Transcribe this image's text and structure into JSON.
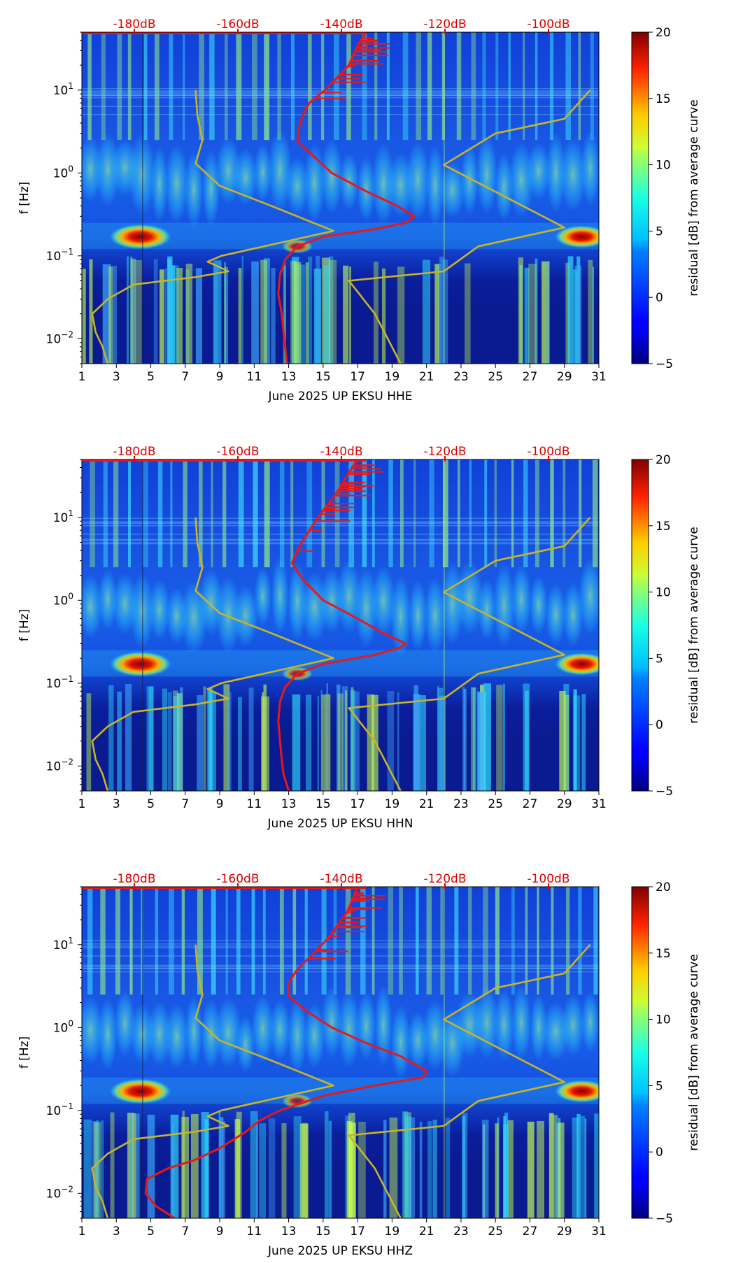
{
  "chart_data": [
    {
      "type": "heatmap",
      "title": "June 2025 UP EKSU  HHE",
      "xlabel": "June 2025 UP EKSU  HHE",
      "ylabel": "f [Hz]",
      "x_ticks": [
        "1",
        "3",
        "5",
        "7",
        "9",
        "11",
        "13",
        "15",
        "17",
        "19",
        "21",
        "23",
        "25",
        "27",
        "29",
        "31"
      ],
      "xlim": [
        1,
        31
      ],
      "ylim_hz": [
        0.005,
        50
      ],
      "y_ticks": [
        {
          "exp": -2
        },
        {
          "exp": -1
        },
        {
          "exp": 0
        },
        {
          "exp": 1
        }
      ],
      "y_tick_base": "10",
      "top_axis_labels": [
        "-180dB",
        "-160dB",
        "-140dB",
        "-120dB",
        "-100dB"
      ],
      "colorbar": {
        "label": "residual [dB] from average curve",
        "ticks": [
          "20",
          "15",
          "10",
          "5",
          "0",
          "−5"
        ],
        "range": [
          -5,
          20
        ]
      },
      "series": [
        {
          "name": "average PSD",
          "color": "#e81818",
          "points": [
            [
              12.9,
              0.005
            ],
            [
              12.8,
              0.008
            ],
            [
              12.7,
              0.012
            ],
            [
              12.6,
              0.02
            ],
            [
              12.4,
              0.035
            ],
            [
              12.5,
              0.06
            ],
            [
              12.8,
              0.09
            ],
            [
              13.5,
              0.13
            ],
            [
              15.0,
              0.17
            ],
            [
              18.0,
              0.21
            ],
            [
              19.8,
              0.25
            ],
            [
              20.3,
              0.3
            ],
            [
              19.3,
              0.4
            ],
            [
              17.5,
              0.6
            ],
            [
              15.5,
              1.0
            ],
            [
              14.3,
              1.7
            ],
            [
              13.5,
              2.4
            ],
            [
              13.6,
              3.5
            ],
            [
              13.8,
              5
            ],
            [
              14.2,
              7
            ],
            [
              15.1,
              10
            ],
            [
              16.5,
              20
            ],
            [
              17.0,
              35
            ],
            [
              17.5,
              50
            ]
          ]
        },
        {
          "name": "yellow trace",
          "color": "#c8b428",
          "points": [
            [
              2.5,
              0.005
            ],
            [
              2.2,
              0.008
            ],
            [
              1.8,
              0.012
            ],
            [
              1.6,
              0.02
            ],
            [
              2.5,
              0.03
            ],
            [
              4.0,
              0.045
            ],
            [
              7.5,
              0.055
            ],
            [
              9.5,
              0.065
            ],
            [
              8.3,
              0.085
            ],
            [
              9.1,
              0.1
            ],
            [
              15.6,
              0.2
            ],
            [
              12.0,
              0.4
            ],
            [
              9.0,
              0.7
            ],
            [
              7.6,
              1.3
            ],
            [
              8.0,
              2.5
            ],
            [
              7.7,
              5
            ],
            [
              7.6,
              10
            ],
            null,
            [
              19.5,
              0.005
            ],
            [
              18.0,
              0.02
            ],
            [
              16.5,
              0.05
            ],
            [
              22.0,
              0.065
            ],
            [
              24.0,
              0.13
            ],
            [
              29.0,
              0.22
            ],
            [
              22.0,
              1.25
            ],
            [
              25.0,
              3.0
            ],
            [
              29.0,
              4.5
            ],
            [
              30.5,
              10
            ]
          ]
        }
      ]
    },
    {
      "type": "heatmap",
      "title": "June 2025 UP EKSU  HHN",
      "xlabel": "June 2025 UP EKSU  HHN",
      "ylabel": "f [Hz]",
      "x_ticks": [
        "1",
        "3",
        "5",
        "7",
        "9",
        "11",
        "13",
        "15",
        "17",
        "19",
        "21",
        "23",
        "25",
        "27",
        "29",
        "31"
      ],
      "xlim": [
        1,
        31
      ],
      "ylim_hz": [
        0.005,
        50
      ],
      "y_ticks": [
        {
          "exp": -2
        },
        {
          "exp": -1
        },
        {
          "exp": 0
        },
        {
          "exp": 1
        }
      ],
      "y_tick_base": "10",
      "top_axis_labels": [
        "-180dB",
        "-160dB",
        "-140dB",
        "-120dB",
        "-100dB"
      ],
      "colorbar": {
        "label": "residual [dB] from average curve",
        "ticks": [
          "20",
          "15",
          "10",
          "5",
          "0",
          "−5"
        ],
        "range": [
          -5,
          20
        ]
      },
      "series": [
        {
          "name": "average PSD",
          "color": "#e81818",
          "points": [
            [
              13.0,
              0.005
            ],
            [
              12.7,
              0.008
            ],
            [
              12.6,
              0.012
            ],
            [
              12.5,
              0.02
            ],
            [
              12.4,
              0.035
            ],
            [
              12.5,
              0.06
            ],
            [
              12.8,
              0.09
            ],
            [
              13.5,
              0.13
            ],
            [
              15.0,
              0.17
            ],
            [
              18.0,
              0.22
            ],
            [
              19.5,
              0.27
            ],
            [
              19.8,
              0.3
            ],
            [
              18.5,
              0.4
            ],
            [
              17.0,
              0.6
            ],
            [
              15.0,
              1.0
            ],
            [
              13.8,
              1.8
            ],
            [
              13.2,
              2.8
            ],
            [
              13.5,
              4
            ],
            [
              14.0,
              6
            ],
            [
              14.7,
              10
            ],
            [
              15.8,
              20
            ],
            [
              16.5,
              35
            ],
            [
              17.0,
              50
            ]
          ]
        },
        {
          "name": "yellow trace",
          "color": "#c8b428",
          "points": [
            [
              2.5,
              0.005
            ],
            [
              2.2,
              0.008
            ],
            [
              1.8,
              0.012
            ],
            [
              1.6,
              0.02
            ],
            [
              2.5,
              0.03
            ],
            [
              4.0,
              0.045
            ],
            [
              7.5,
              0.055
            ],
            [
              9.5,
              0.065
            ],
            [
              8.3,
              0.085
            ],
            [
              9.1,
              0.1
            ],
            [
              15.6,
              0.2
            ],
            [
              12.0,
              0.4
            ],
            [
              9.0,
              0.7
            ],
            [
              7.6,
              1.3
            ],
            [
              8.0,
              2.5
            ],
            [
              7.7,
              5
            ],
            [
              7.6,
              10
            ],
            null,
            [
              19.5,
              0.005
            ],
            [
              18.0,
              0.02
            ],
            [
              16.5,
              0.05
            ],
            [
              22.0,
              0.065
            ],
            [
              24.0,
              0.13
            ],
            [
              29.0,
              0.22
            ],
            [
              22.0,
              1.25
            ],
            [
              25.0,
              3.0
            ],
            [
              29.0,
              4.5
            ],
            [
              30.5,
              10
            ]
          ]
        }
      ]
    },
    {
      "type": "heatmap",
      "title": "June 2025 UP EKSU  HHZ",
      "xlabel": "June 2025 UP EKSU  HHZ",
      "ylabel": "f [Hz]",
      "x_ticks": [
        "1",
        "3",
        "5",
        "7",
        "9",
        "11",
        "13",
        "15",
        "17",
        "19",
        "21",
        "23",
        "25",
        "27",
        "29",
        "31"
      ],
      "xlim": [
        1,
        31
      ],
      "ylim_hz": [
        0.005,
        50
      ],
      "y_ticks": [
        {
          "exp": -2
        },
        {
          "exp": -1
        },
        {
          "exp": 0
        },
        {
          "exp": 1
        }
      ],
      "y_tick_base": "10",
      "top_axis_labels": [
        "-180dB",
        "-160dB",
        "-140dB",
        "-120dB",
        "-100dB"
      ],
      "colorbar": {
        "label": "residual [dB] from average curve",
        "ticks": [
          "20",
          "15",
          "10",
          "5",
          "0",
          "−5"
        ],
        "range": [
          -5,
          20
        ]
      },
      "series": [
        {
          "name": "average PSD",
          "color": "#e81818",
          "points": [
            [
              6.4,
              0.005
            ],
            [
              5.3,
              0.007
            ],
            [
              4.7,
              0.01
            ],
            [
              4.8,
              0.015
            ],
            [
              6.0,
              0.02
            ],
            [
              7.5,
              0.025
            ],
            [
              9.0,
              0.035
            ],
            [
              10.5,
              0.055
            ],
            [
              11.3,
              0.075
            ],
            [
              12.5,
              0.1
            ],
            [
              15.0,
              0.15
            ],
            [
              18.0,
              0.2
            ],
            [
              20.8,
              0.25
            ],
            [
              21.0,
              0.3
            ],
            [
              19.5,
              0.45
            ],
            [
              17.5,
              0.65
            ],
            [
              15.5,
              1.0
            ],
            [
              14.0,
              1.6
            ],
            [
              13.0,
              2.4
            ],
            [
              13.0,
              3.5
            ],
            [
              13.5,
              5
            ],
            [
              14.2,
              7
            ],
            [
              15.3,
              12
            ],
            [
              16.4,
              25
            ],
            [
              17.0,
              50
            ]
          ]
        },
        {
          "name": "yellow trace",
          "color": "#c8b428",
          "points": [
            [
              2.5,
              0.005
            ],
            [
              2.2,
              0.008
            ],
            [
              1.8,
              0.012
            ],
            [
              1.6,
              0.02
            ],
            [
              2.5,
              0.03
            ],
            [
              4.0,
              0.045
            ],
            [
              7.5,
              0.055
            ],
            [
              9.5,
              0.065
            ],
            [
              8.3,
              0.085
            ],
            [
              9.1,
              0.1
            ],
            [
              15.6,
              0.2
            ],
            [
              12.0,
              0.4
            ],
            [
              9.0,
              0.7
            ],
            [
              7.6,
              1.3
            ],
            [
              8.0,
              2.5
            ],
            [
              7.7,
              5
            ],
            [
              7.6,
              10
            ],
            null,
            [
              19.5,
              0.005
            ],
            [
              18.0,
              0.02
            ],
            [
              16.5,
              0.05
            ],
            [
              22.0,
              0.065
            ],
            [
              24.0,
              0.13
            ],
            [
              29.0,
              0.22
            ],
            [
              22.0,
              1.25
            ],
            [
              25.0,
              3.0
            ],
            [
              29.0,
              4.5
            ],
            [
              30.5,
              10
            ]
          ]
        }
      ]
    }
  ]
}
